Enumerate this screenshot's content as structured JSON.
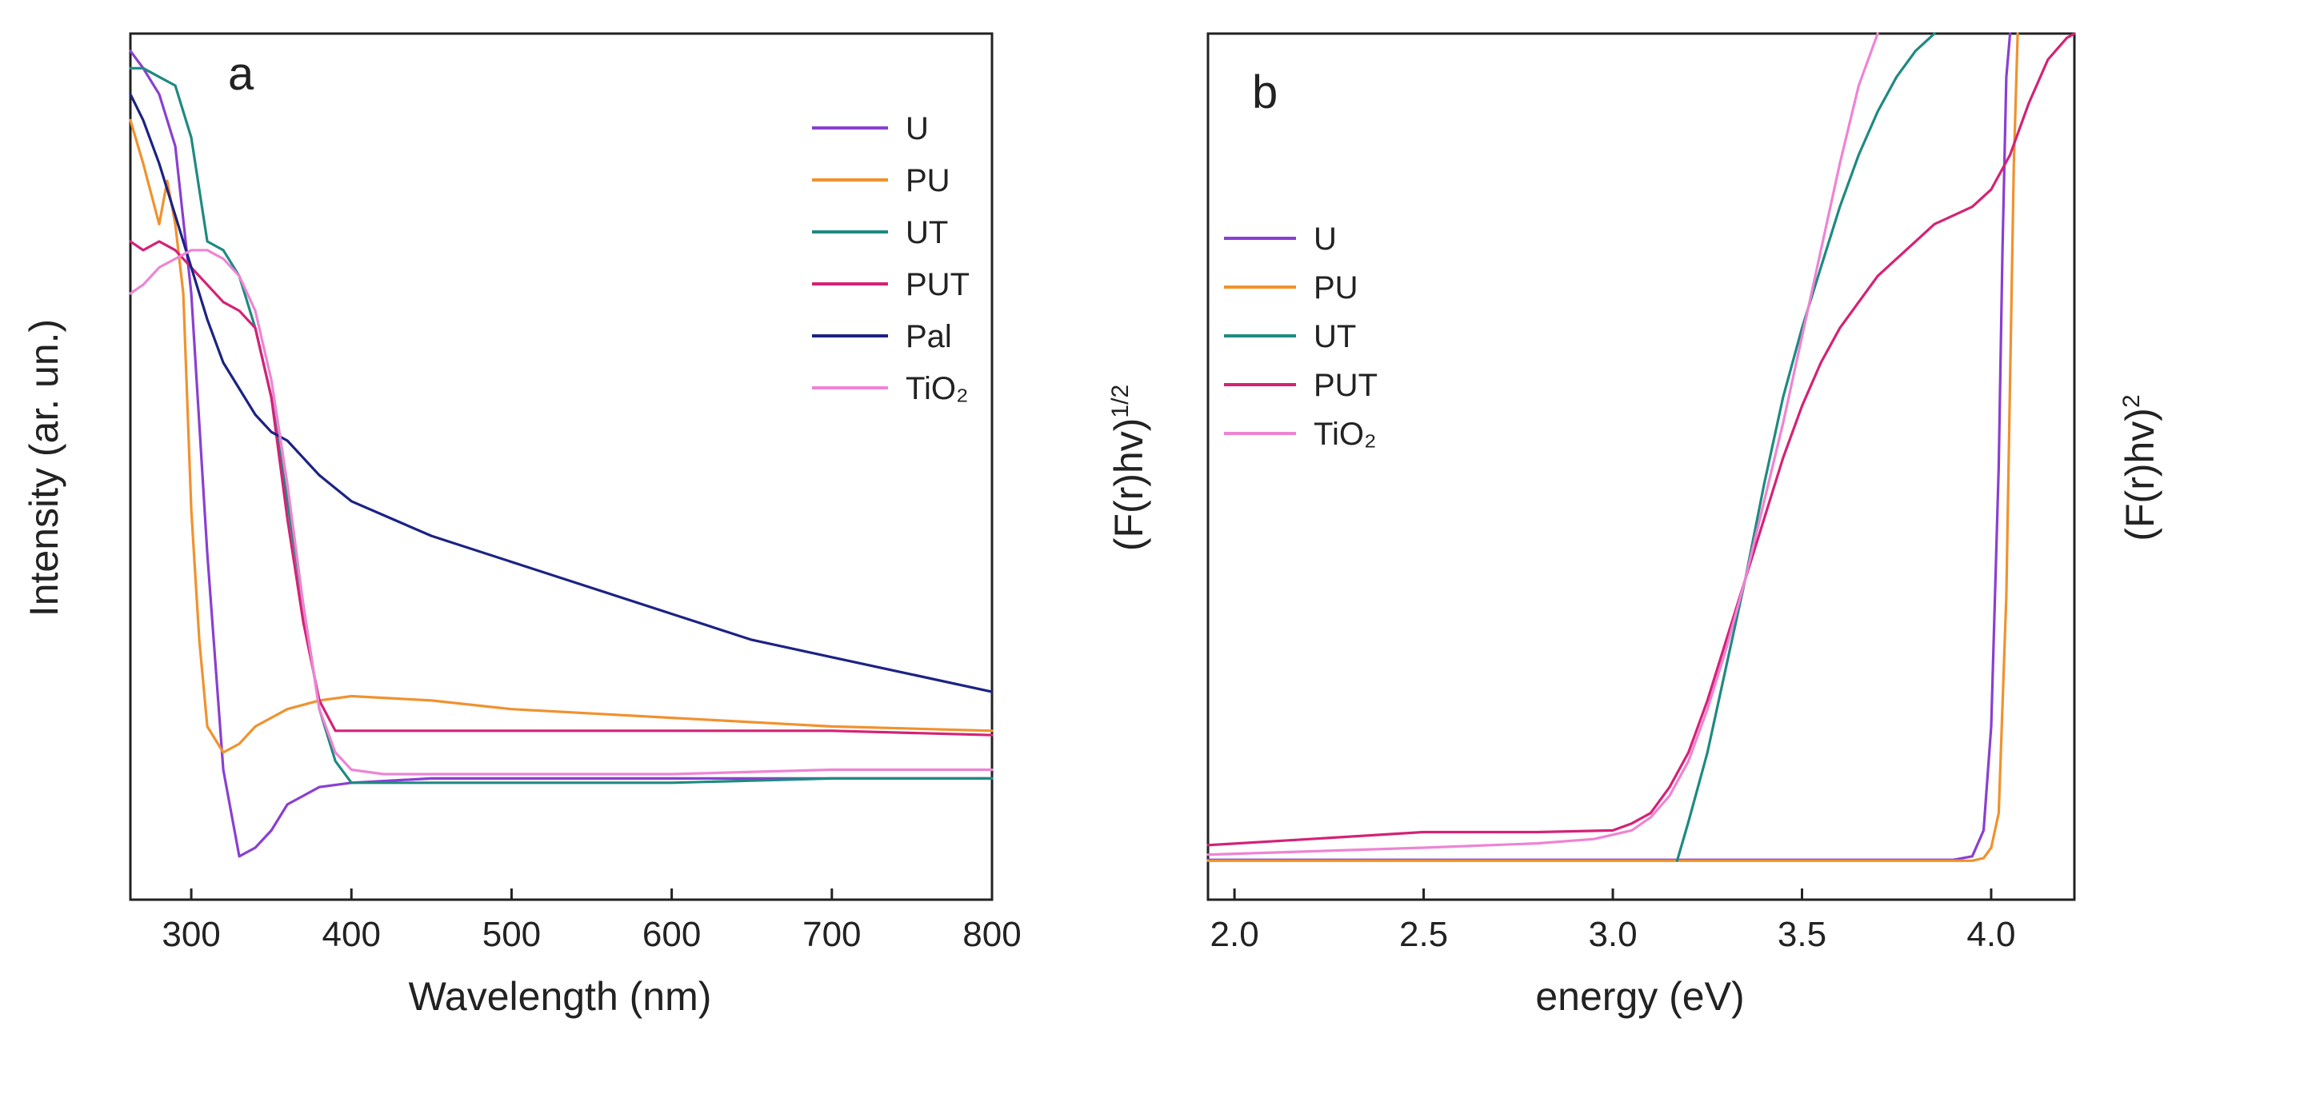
{
  "chart_data": [
    {
      "type": "line",
      "panel_label": "a",
      "xlabel": "Wavelength  (nm)",
      "ylabel": "Intensity  (ar. un.)",
      "xlim": [
        262,
        800
      ],
      "ylim": [
        0,
        1
      ],
      "x_ticks": [
        300,
        400,
        500,
        600,
        700,
        800
      ],
      "y_ticks_shown": false,
      "legend_position": "top-right",
      "series": [
        {
          "name": "U",
          "color": "#8a3fd1",
          "x": [
            262,
            270,
            280,
            290,
            300,
            310,
            320,
            330,
            340,
            350,
            360,
            380,
            400,
            450,
            500,
            600,
            700,
            800
          ],
          "y": [
            0.98,
            0.96,
            0.93,
            0.87,
            0.7,
            0.4,
            0.15,
            0.05,
            0.06,
            0.08,
            0.11,
            0.13,
            0.135,
            0.14,
            0.14,
            0.14,
            0.14,
            0.14
          ]
        },
        {
          "name": "PU",
          "color": "#f0922e",
          "x": [
            262,
            270,
            280,
            285,
            290,
            295,
            300,
            305,
            310,
            320,
            330,
            340,
            360,
            380,
            400,
            450,
            500,
            600,
            700,
            800
          ],
          "y": [
            0.9,
            0.85,
            0.78,
            0.83,
            0.78,
            0.7,
            0.45,
            0.3,
            0.2,
            0.17,
            0.18,
            0.2,
            0.22,
            0.23,
            0.235,
            0.23,
            0.22,
            0.21,
            0.2,
            0.195
          ]
        },
        {
          "name": "UT",
          "color": "#1f8a80",
          "x": [
            262,
            270,
            280,
            290,
            300,
            310,
            320,
            330,
            340,
            350,
            360,
            370,
            380,
            390,
            400,
            420,
            450,
            500,
            600,
            700,
            800
          ],
          "y": [
            0.96,
            0.96,
            0.95,
            0.94,
            0.88,
            0.76,
            0.75,
            0.72,
            0.66,
            0.58,
            0.46,
            0.34,
            0.22,
            0.16,
            0.135,
            0.135,
            0.135,
            0.135,
            0.135,
            0.14,
            0.14
          ]
        },
        {
          "name": "PUT",
          "color": "#d42276",
          "x": [
            262,
            270,
            280,
            290,
            300,
            310,
            320,
            330,
            340,
            350,
            360,
            370,
            380,
            390,
            400,
            450,
            500,
            600,
            700,
            800
          ],
          "y": [
            0.76,
            0.75,
            0.76,
            0.75,
            0.73,
            0.71,
            0.69,
            0.68,
            0.66,
            0.58,
            0.44,
            0.32,
            0.23,
            0.195,
            0.195,
            0.195,
            0.195,
            0.195,
            0.195,
            0.19
          ]
        },
        {
          "name": "Pal",
          "color": "#1c2283",
          "x": [
            262,
            270,
            280,
            290,
            300,
            310,
            320,
            330,
            340,
            350,
            360,
            380,
            400,
            425,
            450,
            500,
            550,
            600,
            650,
            700,
            750,
            800
          ],
          "y": [
            0.93,
            0.9,
            0.85,
            0.79,
            0.73,
            0.67,
            0.62,
            0.59,
            0.56,
            0.54,
            0.53,
            0.49,
            0.46,
            0.44,
            0.42,
            0.39,
            0.36,
            0.33,
            0.3,
            0.28,
            0.26,
            0.24
          ]
        },
        {
          "name": "TiO₂",
          "color": "#ee84d4",
          "x": [
            262,
            270,
            280,
            290,
            300,
            310,
            320,
            330,
            340,
            350,
            360,
            370,
            380,
            390,
            400,
            420,
            450,
            500,
            600,
            700,
            800
          ],
          "y": [
            0.7,
            0.71,
            0.73,
            0.74,
            0.75,
            0.75,
            0.74,
            0.72,
            0.68,
            0.6,
            0.48,
            0.34,
            0.22,
            0.17,
            0.15,
            0.145,
            0.145,
            0.145,
            0.145,
            0.15,
            0.15
          ]
        }
      ]
    },
    {
      "type": "line",
      "panel_label": "b",
      "xlabel": "energy (eV)",
      "ylabel_left": "(F(r)hv)",
      "ylabel_left_sup": "1/2",
      "ylabel_right": "(F(r)hv)",
      "ylabel_right_sup": "2",
      "xlim": [
        1.93,
        4.22
      ],
      "ylim": [
        0,
        1
      ],
      "x_ticks": [
        2.0,
        2.5,
        3.0,
        3.5,
        4.0
      ],
      "x_tick_labels": [
        "2.0",
        "2.5",
        "3.0",
        "3.5",
        "4.0"
      ],
      "y_ticks_shown": false,
      "legend_position": "middle-left",
      "series": [
        {
          "name": "U",
          "color": "#8a3fd1",
          "x": [
            1.93,
            3.5,
            3.9,
            3.95,
            3.98,
            4.0,
            4.02,
            4.03,
            4.04,
            4.05
          ],
          "y": [
            0.046,
            0.046,
            0.046,
            0.05,
            0.08,
            0.2,
            0.5,
            0.75,
            0.95,
            1.0
          ]
        },
        {
          "name": "PU",
          "color": "#f0922e",
          "x": [
            1.93,
            3.5,
            3.95,
            3.98,
            4.0,
            4.02,
            4.04,
            4.05,
            4.06,
            4.07
          ],
          "y": [
            0.045,
            0.045,
            0.045,
            0.048,
            0.06,
            0.1,
            0.35,
            0.6,
            0.85,
            1.0
          ]
        },
        {
          "name": "UT",
          "color": "#1f8a80",
          "x": [
            3.17,
            3.2,
            3.25,
            3.3,
            3.35,
            3.4,
            3.45,
            3.5,
            3.55,
            3.6,
            3.65,
            3.7,
            3.75,
            3.8,
            3.85
          ],
          "y": [
            0.045,
            0.09,
            0.17,
            0.27,
            0.37,
            0.48,
            0.58,
            0.66,
            0.73,
            0.8,
            0.86,
            0.91,
            0.95,
            0.98,
            1.0
          ]
        },
        {
          "name": "PUT",
          "color": "#d42276",
          "x": [
            1.93,
            2.2,
            2.5,
            2.8,
            3.0,
            3.05,
            3.1,
            3.15,
            3.2,
            3.25,
            3.3,
            3.35,
            3.4,
            3.45,
            3.5,
            3.55,
            3.6,
            3.65,
            3.7,
            3.75,
            3.8,
            3.85,
            3.9,
            3.95,
            4.0,
            4.05,
            4.1,
            4.15,
            4.2,
            4.22
          ],
          "y": [
            0.063,
            0.07,
            0.078,
            0.078,
            0.08,
            0.088,
            0.1,
            0.13,
            0.17,
            0.23,
            0.3,
            0.37,
            0.44,
            0.51,
            0.57,
            0.62,
            0.66,
            0.69,
            0.72,
            0.74,
            0.76,
            0.78,
            0.79,
            0.8,
            0.82,
            0.86,
            0.92,
            0.97,
            0.995,
            1.0
          ]
        },
        {
          "name": "TiO₂",
          "color": "#ee84d4",
          "x": [
            1.93,
            2.5,
            2.8,
            2.95,
            3.05,
            3.1,
            3.15,
            3.2,
            3.25,
            3.3,
            3.35,
            3.4,
            3.45,
            3.5,
            3.55,
            3.6,
            3.65,
            3.7
          ],
          "y": [
            0.052,
            0.06,
            0.065,
            0.07,
            0.08,
            0.095,
            0.12,
            0.16,
            0.22,
            0.29,
            0.37,
            0.46,
            0.55,
            0.65,
            0.75,
            0.85,
            0.94,
            1.0
          ]
        }
      ]
    }
  ]
}
